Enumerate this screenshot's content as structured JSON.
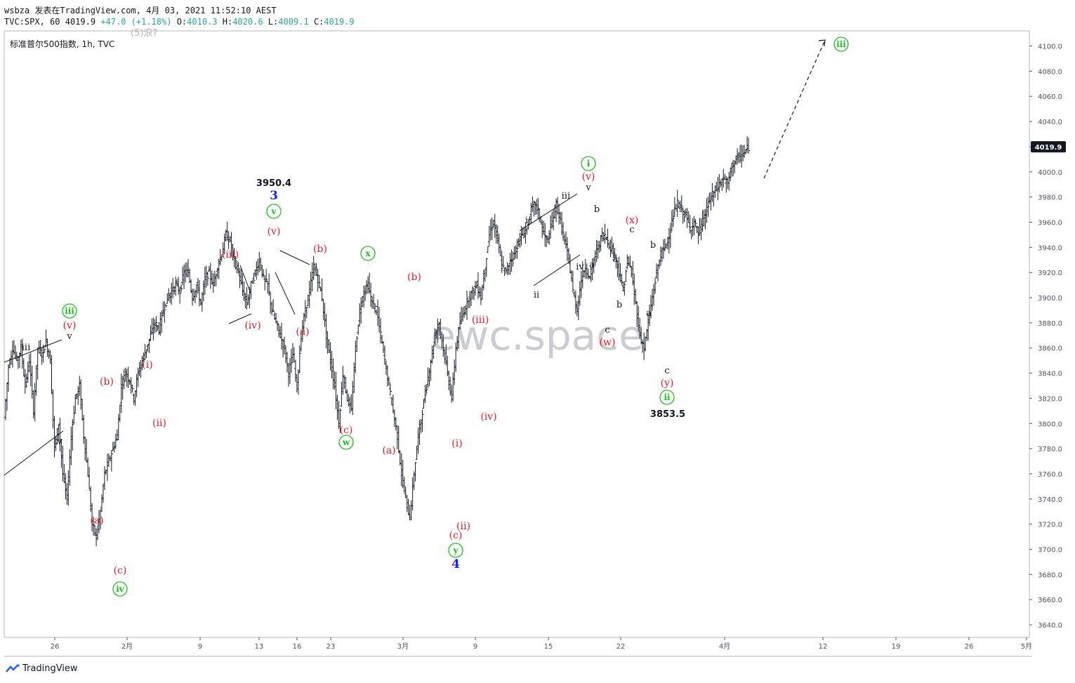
{
  "header": {
    "line1": "wsbza 发表在TradingView.com, 4月 03, 2021 11:52:10 AEST",
    "symbol_line": "TVC:SPX, 60",
    "last_value": "4019.9",
    "change": "+47.0 (+1.18%)",
    "open_label": "O:",
    "open": "4010.3",
    "high_label": "H:",
    "high": "4020.6",
    "low_label": "L:",
    "low": "4009.1",
    "close_label": "C:",
    "close": "4019.9",
    "title": "标准普尔500指数, 1h, TVC",
    "faded_text": "(5)浪?"
  },
  "footer": {
    "brand": "TradingView"
  },
  "watermark": "ewc.space",
  "colors": {
    "red": "#e8192c",
    "green": "#18c418",
    "blue": "#1a24f0",
    "black": "#131722",
    "axis": "#50535e",
    "last_bg": "#131722"
  },
  "chart_data": {
    "type": "ohlc",
    "title": "标准普尔500指数, 1h, TVC",
    "ylim": [
      3630,
      4112
    ],
    "y_ticks": [
      4100.0,
      4080.0,
      4060.0,
      4040.0,
      4020.0,
      4000.0,
      3980.0,
      3960.0,
      3940.0,
      3920.0,
      3900.0,
      3880.0,
      3860.0,
      3840.0,
      3820.0,
      3800.0,
      3780.0,
      3760.0,
      3740.0,
      3720.0,
      3700.0,
      3680.0,
      3660.0,
      3640.0
    ],
    "x_ticks": [
      "26",
      "2月",
      "9",
      "13",
      "16",
      "23",
      "3月",
      "9",
      "15",
      "22",
      "4月",
      "12",
      "19",
      "26",
      "5月"
    ],
    "last_price_label": "4019.9",
    "price_path": [
      [
        0,
        3805
      ],
      [
        1,
        3845
      ],
      [
        2,
        3860
      ],
      [
        3,
        3850
      ],
      [
        4,
        3860
      ],
      [
        5,
        3830
      ],
      [
        6,
        3850
      ],
      [
        7,
        3810
      ],
      [
        8,
        3860
      ],
      [
        9,
        3855
      ],
      [
        10,
        3865
      ],
      [
        11,
        3850
      ],
      [
        12,
        3780
      ],
      [
        13,
        3800
      ],
      [
        14,
        3760
      ],
      [
        15,
        3740
      ],
      [
        16,
        3790
      ],
      [
        17,
        3820
      ],
      [
        18,
        3830
      ],
      [
        19,
        3790
      ],
      [
        20,
        3760
      ],
      [
        21,
        3720
      ],
      [
        22,
        3710
      ],
      [
        23,
        3730
      ],
      [
        24,
        3760
      ],
      [
        25,
        3770
      ],
      [
        26,
        3780
      ],
      [
        27,
        3790
      ],
      [
        28,
        3830
      ],
      [
        29,
        3840
      ],
      [
        30,
        3835
      ],
      [
        31,
        3820
      ],
      [
        32,
        3840
      ],
      [
        33,
        3850
      ],
      [
        34,
        3860
      ],
      [
        35,
        3870
      ],
      [
        36,
        3880
      ],
      [
        37,
        3875
      ],
      [
        38,
        3890
      ],
      [
        39,
        3900
      ],
      [
        40,
        3905
      ],
      [
        41,
        3910
      ],
      [
        42,
        3905
      ],
      [
        43,
        3920
      ],
      [
        44,
        3920
      ],
      [
        45,
        3900
      ],
      [
        46,
        3910
      ],
      [
        47,
        3895
      ],
      [
        48,
        3915
      ],
      [
        49,
        3920
      ],
      [
        50,
        3910
      ],
      [
        51,
        3925
      ],
      [
        52,
        3935
      ],
      [
        53,
        3950
      ],
      [
        54,
        3945
      ],
      [
        55,
        3930
      ],
      [
        56,
        3920
      ],
      [
        57,
        3905
      ],
      [
        58,
        3895
      ],
      [
        59,
        3910
      ],
      [
        60,
        3920
      ],
      [
        61,
        3930
      ],
      [
        62,
        3915
      ],
      [
        63,
        3910
      ],
      [
        64,
        3890
      ],
      [
        65,
        3880
      ],
      [
        66,
        3870
      ],
      [
        67,
        3860
      ],
      [
        68,
        3840
      ],
      [
        69,
        3855
      ],
      [
        70,
        3830
      ],
      [
        71,
        3870
      ],
      [
        72,
        3890
      ],
      [
        73,
        3905
      ],
      [
        74,
        3925
      ],
      [
        75,
        3915
      ],
      [
        76,
        3900
      ],
      [
        77,
        3870
      ],
      [
        78,
        3850
      ],
      [
        79,
        3830
      ],
      [
        80,
        3800
      ],
      [
        81,
        3840
      ],
      [
        82,
        3820
      ],
      [
        83,
        3810
      ],
      [
        84,
        3860
      ],
      [
        85,
        3890
      ],
      [
        86,
        3905
      ],
      [
        87,
        3910
      ],
      [
        88,
        3895
      ],
      [
        89,
        3890
      ],
      [
        90,
        3870
      ],
      [
        91,
        3850
      ],
      [
        92,
        3830
      ],
      [
        93,
        3810
      ],
      [
        94,
        3790
      ],
      [
        95,
        3760
      ],
      [
        96,
        3740
      ],
      [
        97,
        3725
      ],
      [
        98,
        3760
      ],
      [
        99,
        3790
      ],
      [
        100,
        3810
      ],
      [
        101,
        3830
      ],
      [
        102,
        3850
      ],
      [
        103,
        3870
      ],
      [
        104,
        3880
      ],
      [
        105,
        3860
      ],
      [
        106,
        3840
      ],
      [
        107,
        3820
      ],
      [
        108,
        3860
      ],
      [
        109,
        3880
      ],
      [
        110,
        3890
      ],
      [
        111,
        3900
      ],
      [
        112,
        3905
      ],
      [
        113,
        3910
      ],
      [
        114,
        3900
      ],
      [
        115,
        3925
      ],
      [
        116,
        3950
      ],
      [
        117,
        3960
      ],
      [
        118,
        3945
      ],
      [
        119,
        3925
      ],
      [
        120,
        3920
      ],
      [
        121,
        3930
      ],
      [
        122,
        3935
      ],
      [
        123,
        3945
      ],
      [
        124,
        3950
      ],
      [
        125,
        3955
      ],
      [
        126,
        3970
      ],
      [
        127,
        3975
      ],
      [
        128,
        3965
      ],
      [
        129,
        3950
      ],
      [
        130,
        3945
      ],
      [
        131,
        3960
      ],
      [
        132,
        3975
      ],
      [
        133,
        3960
      ],
      [
        134,
        3945
      ],
      [
        135,
        3930
      ],
      [
        136,
        3905
      ],
      [
        137,
        3890
      ],
      [
        138,
        3915
      ],
      [
        139,
        3925
      ],
      [
        140,
        3915
      ],
      [
        141,
        3930
      ],
      [
        142,
        3940
      ],
      [
        143,
        3950
      ],
      [
        144,
        3948
      ],
      [
        145,
        3940
      ],
      [
        146,
        3935
      ],
      [
        147,
        3920
      ],
      [
        148,
        3905
      ],
      [
        149,
        3930
      ],
      [
        150,
        3920
      ],
      [
        151,
        3895
      ],
      [
        152,
        3870
      ],
      [
        153,
        3860
      ],
      [
        154,
        3880
      ],
      [
        155,
        3900
      ],
      [
        156,
        3920
      ],
      [
        157,
        3935
      ],
      [
        158,
        3940
      ],
      [
        159,
        3950
      ],
      [
        160,
        3965
      ],
      [
        161,
        3975
      ],
      [
        162,
        3970
      ],
      [
        163,
        3965
      ],
      [
        164,
        3955
      ],
      [
        165,
        3960
      ],
      [
        166,
        3950
      ],
      [
        167,
        3960
      ],
      [
        168,
        3970
      ],
      [
        169,
        3980
      ],
      [
        170,
        3985
      ],
      [
        171,
        3990
      ],
      [
        172,
        3995
      ],
      [
        173,
        3990
      ],
      [
        174,
        4005
      ],
      [
        175,
        4010
      ],
      [
        176,
        4012
      ],
      [
        177,
        4015
      ],
      [
        178,
        4019.9
      ]
    ],
    "annotations": [
      {
        "t": "iii",
        "x": 37,
        "y": 494,
        "c": "black",
        "s": 13
      },
      {
        "t": "v",
        "x": 99,
        "y": 478,
        "c": "black",
        "s": 13
      },
      {
        "t": "(v)",
        "x": 99,
        "y": 463,
        "c": "red",
        "s": 14
      },
      {
        "t": "iii",
        "x": 99,
        "y": 443,
        "c": "green",
        "s": 12,
        "circle": true
      },
      {
        "t": "iv",
        "x": 83,
        "y": 628,
        "c": "black",
        "s": 13
      },
      {
        "t": "(b)",
        "x": 152,
        "y": 543,
        "c": "red",
        "s": 14
      },
      {
        "t": "(a)",
        "x": 138,
        "y": 741,
        "c": "red",
        "s": 14
      },
      {
        "t": "(c)",
        "x": 171,
        "y": 812,
        "c": "red",
        "s": 14
      },
      {
        "t": "iv",
        "x": 171,
        "y": 839,
        "c": "green",
        "s": 12,
        "circle": true
      },
      {
        "t": "(i)",
        "x": 210,
        "y": 519,
        "c": "red",
        "s": 14
      },
      {
        "t": "(ii)",
        "x": 227,
        "y": 602,
        "c": "red",
        "s": 14
      },
      {
        "t": "(iii)",
        "x": 328,
        "y": 362,
        "c": "red",
        "s": 14
      },
      {
        "t": "(iv)",
        "x": 360,
        "y": 463,
        "c": "red",
        "s": 14
      },
      {
        "t": "3950.4",
        "x": 390,
        "y": 260,
        "c": "black",
        "s": 13,
        "bold": true
      },
      {
        "t": "3",
        "x": 390,
        "y": 279,
        "c": "blue",
        "s": 17
      },
      {
        "t": "v",
        "x": 390,
        "y": 301,
        "c": "green",
        "s": 12,
        "circle": true
      },
      {
        "t": "(v)",
        "x": 390,
        "y": 329,
        "c": "red",
        "s": 14
      },
      {
        "t": "(b)",
        "x": 456,
        "y": 354,
        "c": "red",
        "s": 14
      },
      {
        "t": "(a)",
        "x": 431,
        "y": 472,
        "c": "red",
        "s": 14
      },
      {
        "t": "x",
        "x": 524,
        "y": 361,
        "c": "green",
        "s": 12,
        "circle": true
      },
      {
        "t": "(c)",
        "x": 493,
        "y": 612,
        "c": "red",
        "s": 14
      },
      {
        "t": "w",
        "x": 493,
        "y": 630,
        "c": "green",
        "s": 12,
        "circle": true
      },
      {
        "t": "(b)",
        "x": 590,
        "y": 394,
        "c": "red",
        "s": 14
      },
      {
        "t": "(a)",
        "x": 554,
        "y": 641,
        "c": "red",
        "s": 14
      },
      {
        "t": "(iii)",
        "x": 684,
        "y": 455,
        "c": "red",
        "s": 14
      },
      {
        "t": "(iv)",
        "x": 696,
        "y": 593,
        "c": "red",
        "s": 14
      },
      {
        "t": "(i)",
        "x": 651,
        "y": 631,
        "c": "red",
        "s": 14
      },
      {
        "t": "(ii)",
        "x": 660,
        "y": 749,
        "c": "red",
        "s": 14
      },
      {
        "t": "(c)",
        "x": 649,
        "y": 762,
        "c": "red",
        "s": 14
      },
      {
        "t": "y",
        "x": 649,
        "y": 784,
        "c": "green",
        "s": 12,
        "circle": true
      },
      {
        "t": "4",
        "x": 649,
        "y": 804,
        "c": "blue",
        "s": 17
      },
      {
        "t": "i",
        "x": 750,
        "y": 313,
        "c": "black",
        "s": 13
      },
      {
        "t": "ii",
        "x": 764,
        "y": 419,
        "c": "black",
        "s": 13
      },
      {
        "t": "iii",
        "x": 806,
        "y": 278,
        "c": "black",
        "s": 13
      },
      {
        "t": "iv",
        "x": 826,
        "y": 379,
        "c": "black",
        "s": 13
      },
      {
        "t": "v",
        "x": 838,
        "y": 266,
        "c": "black",
        "s": 13
      },
      {
        "t": "(v)",
        "x": 838,
        "y": 251,
        "c": "red",
        "s": 14
      },
      {
        "t": "i",
        "x": 838,
        "y": 233,
        "c": "green",
        "s": 12,
        "circle": true
      },
      {
        "t": "b",
        "x": 850,
        "y": 297,
        "c": "black",
        "s": 13
      },
      {
        "t": "a",
        "x": 843,
        "y": 376,
        "c": "black",
        "s": 13
      },
      {
        "t": "a",
        "x": 876,
        "y": 368,
        "c": "black",
        "s": 13
      },
      {
        "t": "b",
        "x": 882,
        "y": 433,
        "c": "black",
        "s": 13
      },
      {
        "t": "c",
        "x": 865,
        "y": 469,
        "c": "black",
        "s": 13
      },
      {
        "t": "(w)",
        "x": 865,
        "y": 487,
        "c": "red",
        "s": 14
      },
      {
        "t": "(x)",
        "x": 900,
        "y": 313,
        "c": "red",
        "s": 14
      },
      {
        "t": "c",
        "x": 900,
        "y": 326,
        "c": "black",
        "s": 13
      },
      {
        "t": "b",
        "x": 930,
        "y": 348,
        "c": "black",
        "s": 13
      },
      {
        "t": "a",
        "x": 924,
        "y": 445,
        "c": "black",
        "s": 13
      },
      {
        "t": "c",
        "x": 950,
        "y": 527,
        "c": "black",
        "s": 13
      },
      {
        "t": "(y)",
        "x": 950,
        "y": 545,
        "c": "red",
        "s": 14
      },
      {
        "t": "ii",
        "x": 950,
        "y": 566,
        "c": "green",
        "s": 12,
        "circle": true
      },
      {
        "t": "3853.5",
        "x": 951,
        "y": 589,
        "c": "black",
        "s": 13,
        "bold": true
      },
      {
        "t": "iii",
        "x": 1198,
        "y": 63,
        "c": "green",
        "s": 12,
        "circle": true
      }
    ],
    "trendlines": [
      [
        6,
        516,
        88,
        484
      ],
      [
        6,
        677,
        90,
        614
      ],
      [
        342,
        378,
        358,
        420
      ],
      [
        326,
        461,
        358,
        447
      ],
      [
        399,
        357,
        441,
        377
      ],
      [
        392,
        388,
        420,
        448
      ],
      [
        740,
        329,
        822,
        276
      ],
      [
        760,
        407,
        826,
        363
      ]
    ],
    "projection": [
      1088,
      254,
      1175,
      57
    ]
  }
}
